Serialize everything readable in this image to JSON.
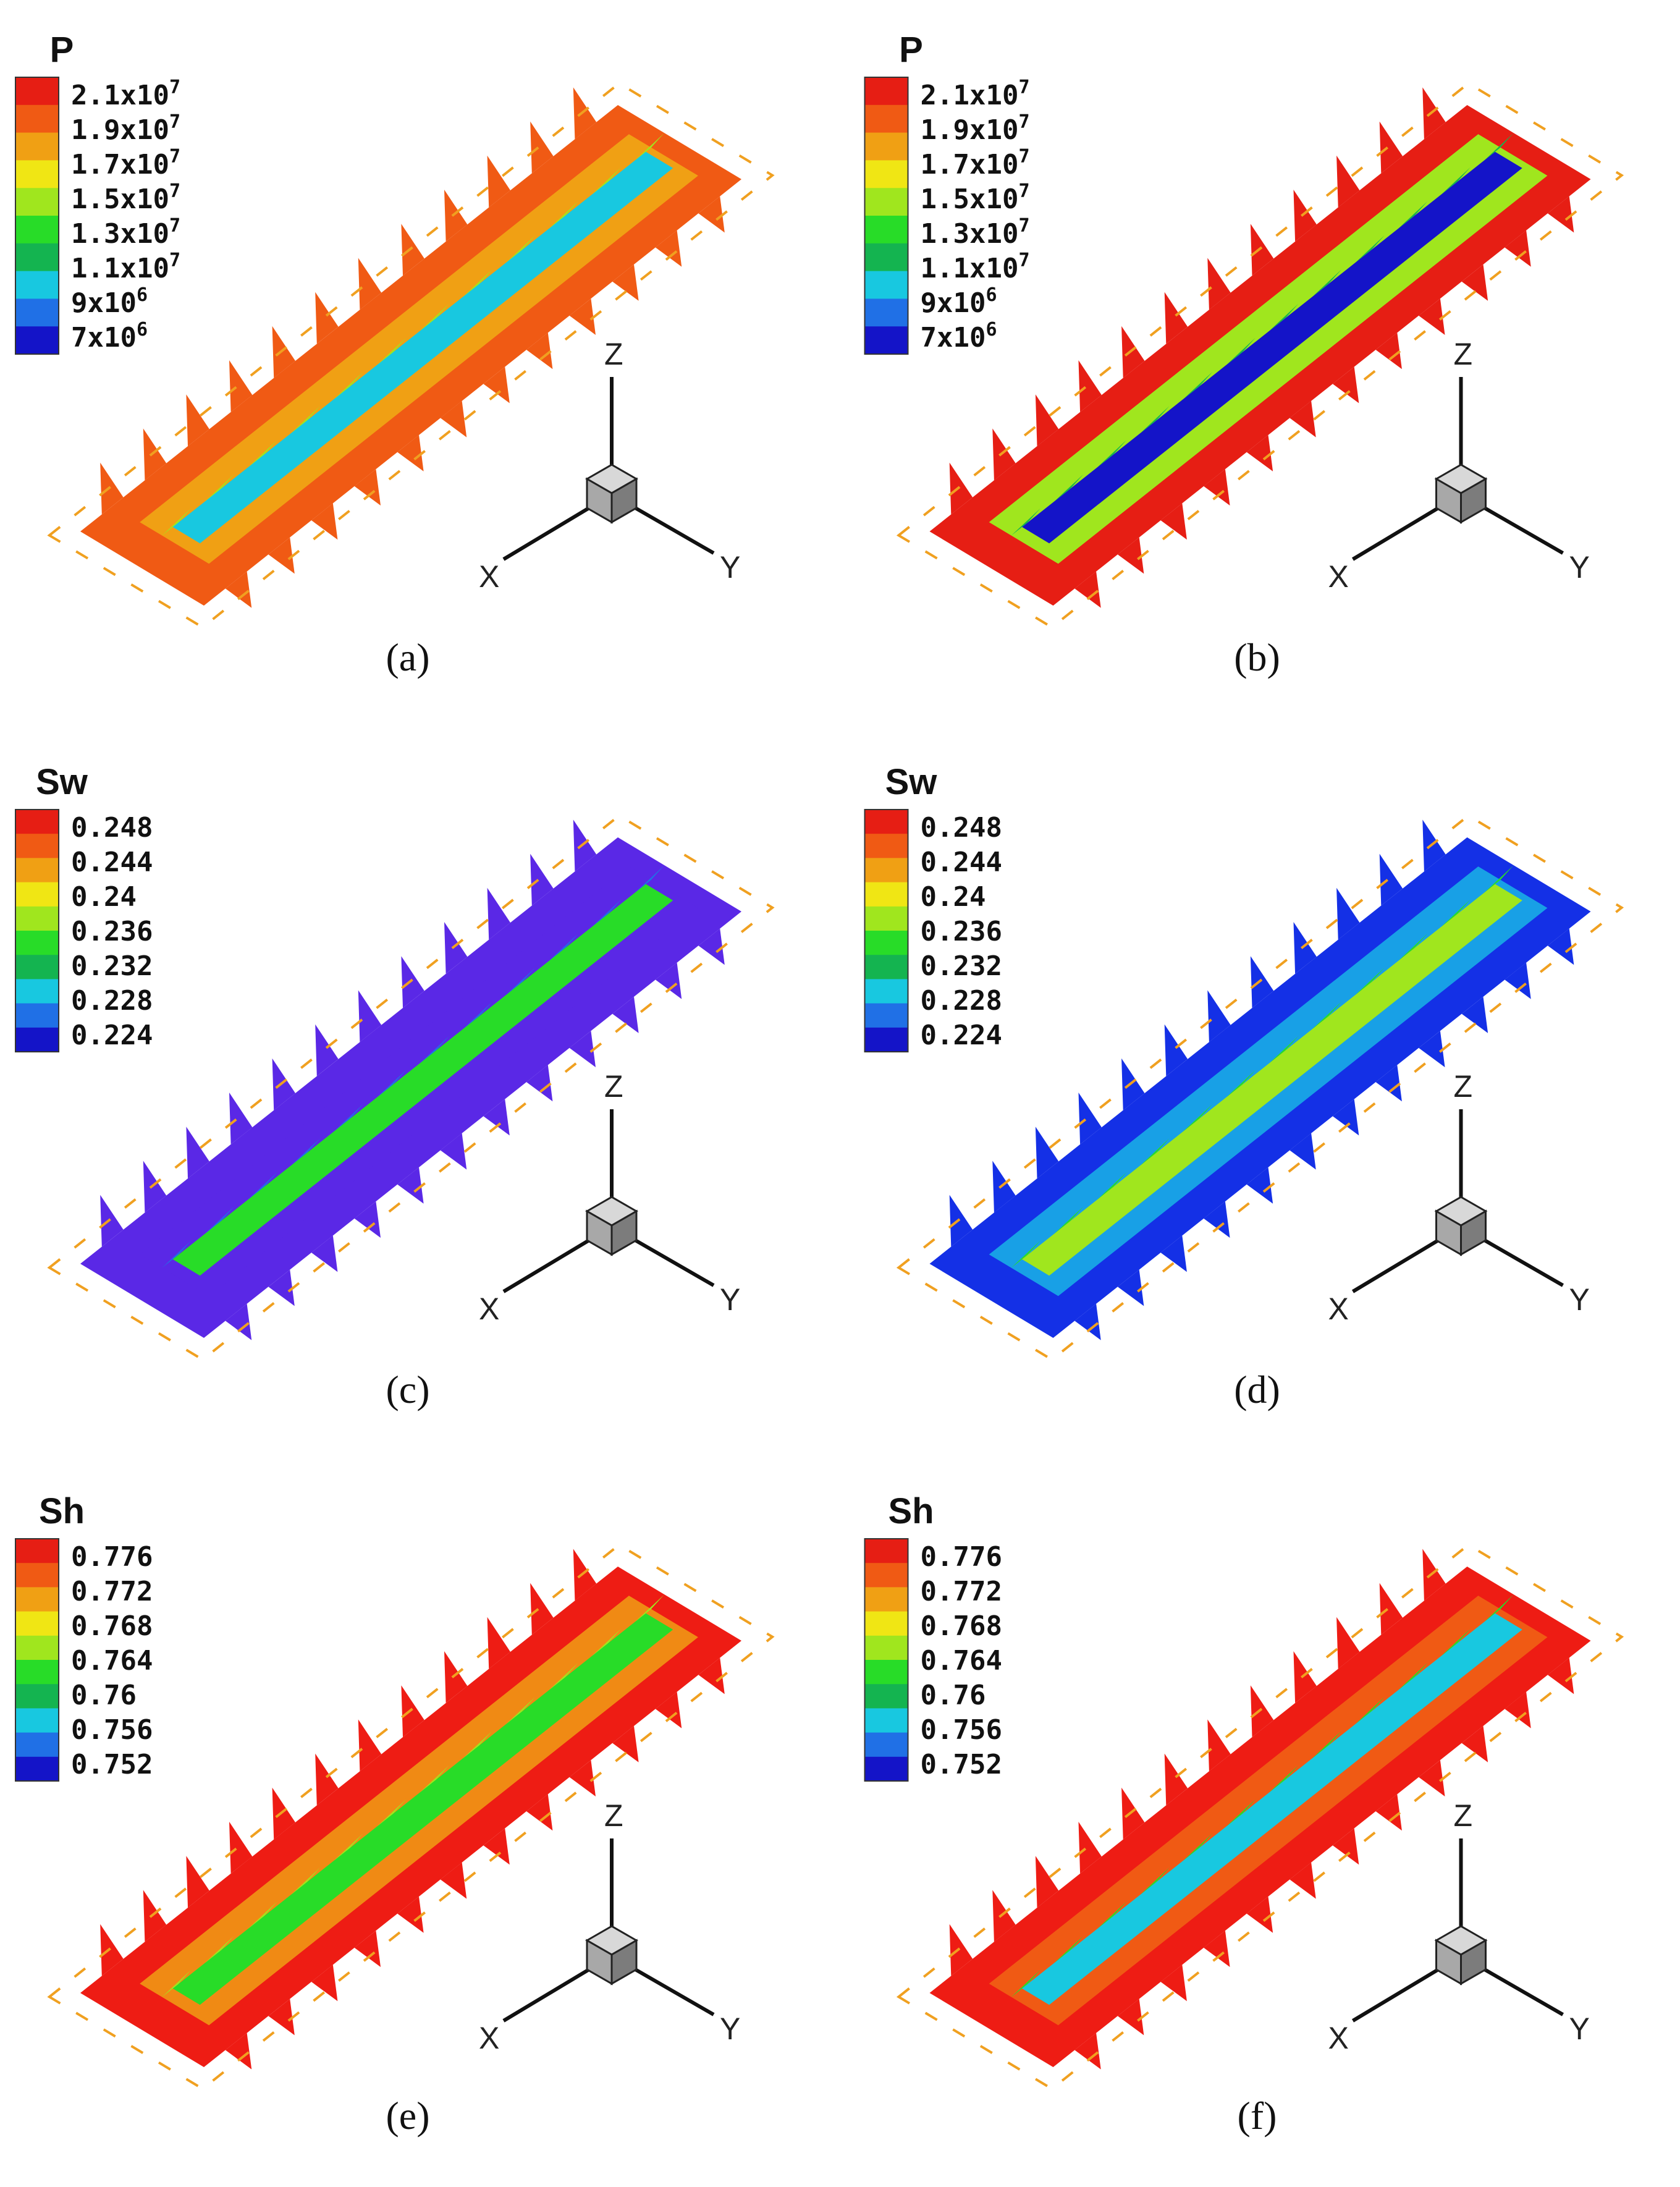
{
  "legend_colors_low_to_high": [
    "#1414c8",
    "#2070e6",
    "#18c8e0",
    "#14b450",
    "#28dc28",
    "#a0e61e",
    "#f0e614",
    "#f0a014",
    "#f05a14",
    "#e61e14"
  ],
  "panels": [
    {
      "id": "a",
      "caption": "(a)",
      "legend": {
        "title": "P",
        "labels": [
          {
            "mantissa": "2.1x10",
            "exponent": "7"
          },
          {
            "mantissa": "1.9x10",
            "exponent": "7"
          },
          {
            "mantissa": "1.7x10",
            "exponent": "7"
          },
          {
            "mantissa": "1.5x10",
            "exponent": "7"
          },
          {
            "mantissa": "1.3x10",
            "exponent": "7"
          },
          {
            "mantissa": "1.1x10",
            "exponent": "7"
          },
          {
            "mantissa": "9x10",
            "exponent": "6"
          },
          {
            "mantissa": "7x10",
            "exponent": "6"
          }
        ]
      },
      "field": {
        "outer": "#f05a14",
        "mid": "#f0a014",
        "core": "#18c8e0",
        "fin": "#a0e61e"
      },
      "axes": {
        "x": "X",
        "y": "Y",
        "z": "Z"
      }
    },
    {
      "id": "b",
      "caption": "(b)",
      "legend": {
        "title": "P",
        "labels": [
          {
            "mantissa": "2.1x10",
            "exponent": "7"
          },
          {
            "mantissa": "1.9x10",
            "exponent": "7"
          },
          {
            "mantissa": "1.7x10",
            "exponent": "7"
          },
          {
            "mantissa": "1.5x10",
            "exponent": "7"
          },
          {
            "mantissa": "1.3x10",
            "exponent": "7"
          },
          {
            "mantissa": "1.1x10",
            "exponent": "7"
          },
          {
            "mantissa": "9x10",
            "exponent": "6"
          },
          {
            "mantissa": "7x10",
            "exponent": "6"
          }
        ]
      },
      "field": {
        "outer": "#e61e14",
        "mid": "#a0e61e",
        "core": "#1414c8",
        "fin": "#14b450"
      },
      "axes": {
        "x": "X",
        "y": "Y",
        "z": "Z"
      }
    },
    {
      "id": "c",
      "caption": "(c)",
      "legend": {
        "title": "Sw",
        "labels": [
          {
            "mantissa": "0.248"
          },
          {
            "mantissa": "0.244"
          },
          {
            "mantissa": "0.24"
          },
          {
            "mantissa": "0.236"
          },
          {
            "mantissa": "0.232"
          },
          {
            "mantissa": "0.228"
          },
          {
            "mantissa": "0.224"
          }
        ]
      },
      "field": {
        "outer": "#5a28e6",
        "mid": "#5a28e6",
        "core": "#28dc28",
        "fin": "#2070e6"
      },
      "axes": {
        "x": "X",
        "y": "Y",
        "z": "Z"
      }
    },
    {
      "id": "d",
      "caption": "(d)",
      "legend": {
        "title": "Sw",
        "labels": [
          {
            "mantissa": "0.248"
          },
          {
            "mantissa": "0.244"
          },
          {
            "mantissa": "0.24"
          },
          {
            "mantissa": "0.236"
          },
          {
            "mantissa": "0.232"
          },
          {
            "mantissa": "0.228"
          },
          {
            "mantissa": "0.224"
          }
        ]
      },
      "field": {
        "outer": "#1430e6",
        "mid": "#18a0e6",
        "core": "#a0e61e",
        "fin": "#28dc28"
      },
      "axes": {
        "x": "X",
        "y": "Y",
        "z": "Z"
      }
    },
    {
      "id": "e",
      "caption": "(e)",
      "legend": {
        "title": "Sh",
        "labels": [
          {
            "mantissa": "0.776"
          },
          {
            "mantissa": "0.772"
          },
          {
            "mantissa": "0.768"
          },
          {
            "mantissa": "0.764"
          },
          {
            "mantissa": "0.76"
          },
          {
            "mantissa": "0.756"
          },
          {
            "mantissa": "0.752"
          }
        ]
      },
      "field": {
        "outer": "#ee1c14",
        "mid": "#f08a14",
        "core": "#28dc28",
        "fin": "#a0e61e"
      },
      "axes": {
        "x": "X",
        "y": "Y",
        "z": "Z"
      }
    },
    {
      "id": "f",
      "caption": "(f)",
      "legend": {
        "title": "Sh",
        "labels": [
          {
            "mantissa": "0.776"
          },
          {
            "mantissa": "0.772"
          },
          {
            "mantissa": "0.768"
          },
          {
            "mantissa": "0.764"
          },
          {
            "mantissa": "0.76"
          },
          {
            "mantissa": "0.756"
          },
          {
            "mantissa": "0.752"
          }
        ]
      },
      "field": {
        "outer": "#ee1c14",
        "mid": "#f05a14",
        "core": "#18c8e0",
        "fin": "#28dc28"
      },
      "axes": {
        "x": "X",
        "y": "Y",
        "z": "Z"
      }
    }
  ]
}
